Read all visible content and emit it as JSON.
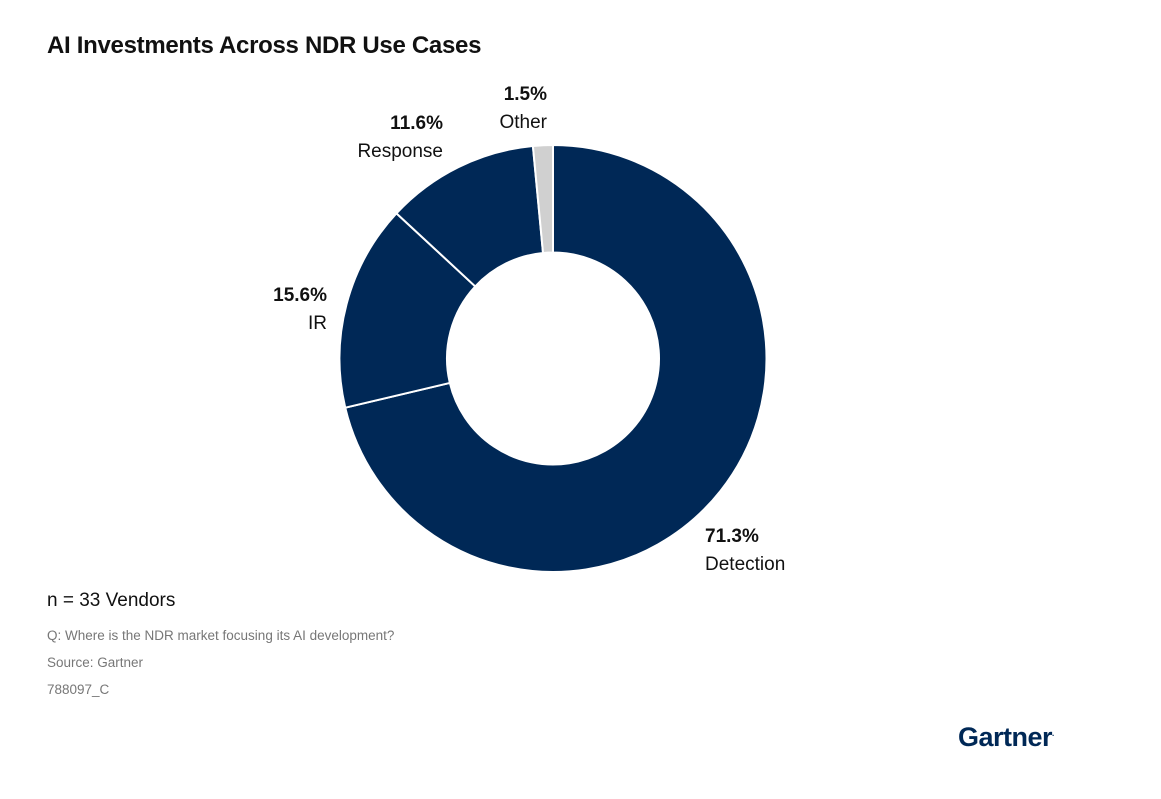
{
  "chart_data": {
    "type": "pie",
    "title": "AI Investments Across NDR Use Cases",
    "donut": true,
    "slices": [
      {
        "label": "Detection",
        "value": 71.3,
        "value_label": "71.3%",
        "color": "#002856"
      },
      {
        "label": "IR",
        "value": 15.6,
        "value_label": "15.6%",
        "color": "#002856"
      },
      {
        "label": "Response",
        "value": 11.6,
        "value_label": "11.6%",
        "color": "#002856"
      },
      {
        "label": "Other",
        "value": 1.5,
        "value_label": "1.5%",
        "color": "#d0d0d0"
      }
    ]
  },
  "footer": {
    "n": "n = 33 Vendors",
    "question": "Q: Where is the NDR market focusing its AI development?",
    "source": "Source: Gartner",
    "id": "788097_C",
    "logo": "Gartner"
  }
}
